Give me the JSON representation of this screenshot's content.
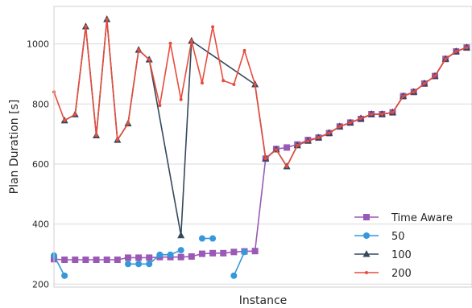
{
  "chart_data": {
    "type": "line",
    "title": "",
    "xlabel": "Instance",
    "ylabel": "Plan Duration [s]",
    "xlim": [
      0,
      39.5
    ],
    "ylim": [
      190,
      1125
    ],
    "yticks": [
      200,
      400,
      600,
      800,
      1000
    ],
    "grid": "horizontal",
    "legend_position": "bottom-right",
    "series": [
      {
        "name": "Time Aware",
        "color": "#9b59b6",
        "marker": "square",
        "points": [
          [
            0,
            283
          ],
          [
            1,
            281
          ],
          [
            2,
            281
          ],
          [
            3,
            281
          ],
          [
            4,
            281
          ],
          [
            5,
            281
          ],
          [
            6,
            281
          ],
          [
            7,
            288
          ],
          [
            8,
            288
          ],
          [
            9,
            288
          ],
          [
            10,
            290
          ],
          [
            11,
            290
          ],
          [
            12,
            290
          ],
          [
            13,
            292
          ],
          [
            14,
            301
          ],
          [
            15,
            303
          ],
          [
            16,
            303
          ],
          [
            17,
            307
          ],
          [
            18,
            309
          ],
          [
            19,
            310
          ],
          [
            20,
            618
          ],
          [
            21,
            650
          ],
          [
            22,
            655
          ],
          [
            23,
            665
          ],
          [
            24,
            680
          ],
          [
            25,
            688
          ],
          [
            26,
            703
          ],
          [
            27,
            725
          ],
          [
            28,
            738
          ],
          [
            29,
            750
          ],
          [
            30,
            766
          ],
          [
            31,
            766
          ],
          [
            32,
            772
          ],
          [
            33,
            826
          ],
          [
            34,
            840
          ],
          [
            35,
            868
          ],
          [
            36,
            893
          ],
          [
            37,
            950
          ],
          [
            38,
            975
          ],
          [
            39,
            988
          ]
        ]
      },
      {
        "name": "50",
        "color": "#3498db",
        "marker": "circle",
        "segments": [
          [
            [
              0,
              295
            ],
            [
              1,
              228
            ]
          ],
          [
            [
              7,
              267
            ],
            [
              8,
              267
            ],
            [
              9,
              267
            ],
            [
              10,
              298
            ],
            [
              11,
              298
            ],
            [
              12,
              313
            ]
          ],
          [
            [
              14,
              352
            ],
            [
              15,
              352
            ]
          ],
          [
            [
              17,
              228
            ],
            [
              18,
              307
            ]
          ]
        ]
      },
      {
        "name": "100",
        "color": "#34495e",
        "marker": "triangle",
        "points": [
          [
            1,
            745
          ],
          [
            2,
            765
          ],
          [
            3,
            1058
          ],
          [
            4,
            695
          ],
          [
            5,
            1082
          ],
          [
            6,
            680
          ],
          [
            7,
            735
          ],
          [
            8,
            980
          ],
          [
            9,
            948
          ],
          [
            12,
            362
          ],
          [
            13,
            1010
          ],
          [
            19,
            865
          ],
          [
            20,
            618
          ],
          [
            21,
            648
          ],
          [
            22,
            592
          ],
          [
            23,
            662
          ],
          [
            24,
            677
          ],
          [
            25,
            688
          ],
          [
            26,
            703
          ],
          [
            27,
            725
          ],
          [
            28,
            738
          ],
          [
            29,
            752
          ],
          [
            30,
            766
          ],
          [
            31,
            766
          ],
          [
            32,
            772
          ],
          [
            33,
            826
          ],
          [
            34,
            840
          ],
          [
            35,
            868
          ],
          [
            36,
            893
          ],
          [
            37,
            950
          ],
          [
            38,
            975
          ],
          [
            39,
            988
          ]
        ]
      },
      {
        "name": "200",
        "color": "#e74c3c",
        "marker": "dot",
        "points": [
          [
            0,
            840
          ],
          [
            1,
            745
          ],
          [
            2,
            765
          ],
          [
            3,
            1058
          ],
          [
            4,
            695
          ],
          [
            5,
            1082
          ],
          [
            6,
            680
          ],
          [
            7,
            735
          ],
          [
            8,
            980
          ],
          [
            9,
            948
          ],
          [
            10,
            795
          ],
          [
            11,
            1002
          ],
          [
            12,
            815
          ],
          [
            13,
            1010
          ],
          [
            14,
            870
          ],
          [
            15,
            1057
          ],
          [
            16,
            878
          ],
          [
            17,
            865
          ],
          [
            18,
            978
          ],
          [
            19,
            865
          ],
          [
            20,
            618
          ],
          [
            21,
            648
          ],
          [
            22,
            592
          ],
          [
            23,
            662
          ],
          [
            24,
            677
          ],
          [
            25,
            688
          ],
          [
            26,
            703
          ],
          [
            27,
            725
          ],
          [
            28,
            738
          ],
          [
            29,
            752
          ],
          [
            30,
            766
          ],
          [
            31,
            766
          ],
          [
            32,
            772
          ],
          [
            33,
            826
          ],
          [
            34,
            840
          ],
          [
            35,
            868
          ],
          [
            36,
            893
          ],
          [
            37,
            950
          ],
          [
            38,
            975
          ],
          [
            39,
            988
          ]
        ]
      }
    ]
  }
}
